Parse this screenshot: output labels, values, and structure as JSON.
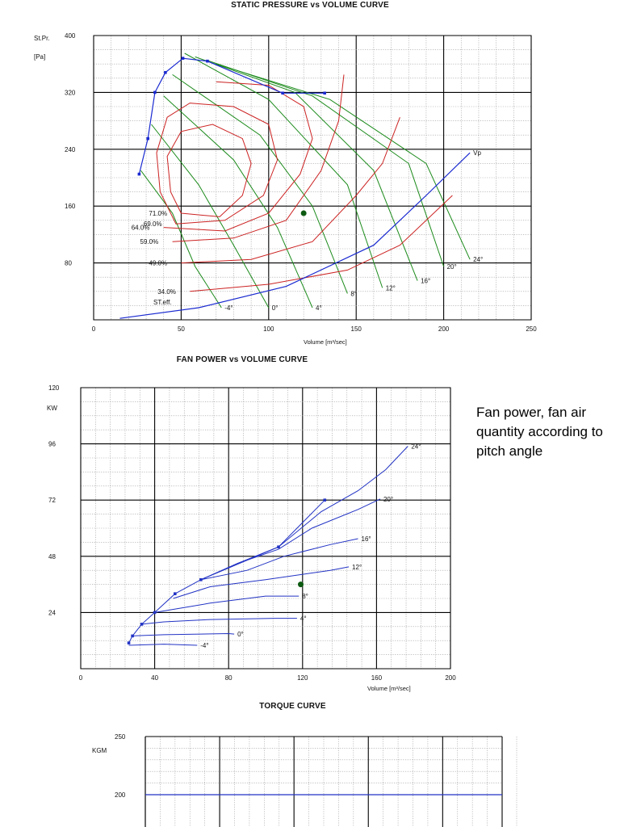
{
  "caption": "Fan power, fan air quantity according to pitch angle",
  "chart_data": [
    {
      "type": "line",
      "title": "STATIC PRESSURE vs VOLUME CURVE",
      "xlabel": "Volume [m³/sec]",
      "ylabel": "St.Pr. [Pa]",
      "xlim": [
        0,
        250
      ],
      "ylim": [
        0,
        400
      ],
      "x_ticks": [
        "0",
        "50",
        "100",
        "150",
        "200",
        "250"
      ],
      "y_ticks": [
        "80",
        "160",
        "240",
        "320",
        "400"
      ],
      "colors": {
        "pitch": "#1a8a1a",
        "efficiency": "#cc2222",
        "envelope": "#1a2ad0",
        "vp": "#1a2ad0",
        "operating_point": "#0d5a12"
      },
      "pitch_lines": [
        {
          "label": "-4°",
          "points": [
            [
              27,
              210
            ],
            [
              45,
              150
            ],
            [
              58,
              75
            ],
            [
              73,
              17
            ]
          ]
        },
        {
          "label": "0°",
          "points": [
            [
              33,
              275
            ],
            [
              60,
              190
            ],
            [
              80,
              105
            ],
            [
              100,
              17
            ]
          ]
        },
        {
          "label": "4°",
          "points": [
            [
              40,
              315
            ],
            [
              80,
              225
            ],
            [
              105,
              130
            ],
            [
              125,
              17
            ]
          ]
        },
        {
          "label": "8°",
          "points": [
            [
              45,
              345
            ],
            [
              95,
              260
            ],
            [
              125,
              160
            ],
            [
              145,
              37
            ]
          ]
        },
        {
          "label": "12°",
          "points": [
            [
              52,
              375
            ],
            [
              100,
              310
            ],
            [
              145,
              190
            ],
            [
              165,
              45
            ]
          ]
        },
        {
          "label": "16°",
          "points": [
            [
              58,
              370
            ],
            [
              115,
              320
            ],
            [
              160,
              210
            ],
            [
              185,
              55
            ]
          ]
        },
        {
          "label": "20°",
          "points": [
            [
              65,
              365
            ],
            [
              125,
              315
            ],
            [
              180,
              220
            ],
            [
              200,
              75
            ]
          ]
        },
        {
          "label": "24°",
          "points": [
            [
              70,
              360
            ],
            [
              135,
              310
            ],
            [
              190,
              220
            ],
            [
              215,
              85
            ]
          ]
        }
      ],
      "efficiency_lines": [
        {
          "label": "71.0%",
          "type": "closed",
          "points": [
            [
              50,
              150
            ],
            [
              72,
              145
            ],
            [
              85,
              175
            ],
            [
              90,
              220
            ],
            [
              85,
              255
            ],
            [
              68,
              275
            ],
            [
              50,
              265
            ],
            [
              42,
              230
            ],
            [
              44,
              180
            ]
          ]
        },
        {
          "label": "69.0%",
          "type": "closed",
          "points": [
            [
              47,
              135
            ],
            [
              75,
              140
            ],
            [
              97,
              175
            ],
            [
              105,
              225
            ],
            [
              100,
              275
            ],
            [
              80,
              300
            ],
            [
              55,
              305
            ],
            [
              42,
              285
            ],
            [
              36,
              235
            ],
            [
              38,
              180
            ]
          ]
        },
        {
          "label": "64.0%",
          "type": "open",
          "points": [
            [
              40,
              130
            ],
            [
              75,
              125
            ],
            [
              100,
              150
            ],
            [
              118,
              205
            ],
            [
              125,
              255
            ],
            [
              120,
              300
            ],
            [
              100,
              330
            ],
            [
              70,
              335
            ]
          ]
        },
        {
          "label": "59.0%",
          "type": "open",
          "points": [
            [
              45,
              110
            ],
            [
              80,
              115
            ],
            [
              110,
              140
            ],
            [
              130,
              210
            ],
            [
              140,
              280
            ],
            [
              143,
              345
            ]
          ]
        },
        {
          "label": "49.0%",
          "type": "open",
          "points": [
            [
              50,
              80
            ],
            [
              90,
              85
            ],
            [
              125,
              110
            ],
            [
              150,
              175
            ],
            [
              165,
              220
            ],
            [
              175,
              285
            ]
          ]
        },
        {
          "label": "34.0%",
          "type": "open",
          "points": [
            [
              55,
              40
            ],
            [
              100,
              50
            ],
            [
              145,
              70
            ],
            [
              175,
              105
            ],
            [
              205,
              175
            ]
          ]
        }
      ],
      "envelope": {
        "points": [
          [
            26,
            205
          ],
          [
            31,
            255
          ],
          [
            35,
            320
          ],
          [
            41,
            348
          ],
          [
            51,
            368
          ],
          [
            65,
            364
          ],
          [
            108,
            319
          ],
          [
            132,
            319
          ]
        ]
      },
      "vp_curve": {
        "label": "Vp",
        "points": [
          [
            15,
            2
          ],
          [
            60,
            17
          ],
          [
            110,
            47
          ],
          [
            160,
            105
          ],
          [
            190,
            175
          ],
          [
            215,
            235
          ]
        ]
      },
      "operating_point": {
        "x": 120,
        "y": 150
      },
      "st_eff_label": "ST.eff."
    },
    {
      "type": "line",
      "title": "FAN POWER vs VOLUME CURVE",
      "xlabel": "Volume [m³/sec]",
      "ylabel": "KW",
      "xlim": [
        0,
        200
      ],
      "ylim": [
        0,
        120
      ],
      "x_ticks": [
        "0",
        "40",
        "80",
        "120",
        "160",
        "200"
      ],
      "y_ticks": [
        "24",
        "48",
        "72",
        "96",
        "120"
      ],
      "colors": {
        "series": "#2233c4",
        "operating_point": "#0d5a12"
      },
      "series": [
        {
          "name": "-4°",
          "points": [
            [
              26,
              10
            ],
            [
              45,
              10.5
            ],
            [
              63,
              10
            ]
          ]
        },
        {
          "name": "0°",
          "points": [
            [
              28,
              14
            ],
            [
              45,
              14.5
            ],
            [
              65,
              14.8
            ],
            [
              80,
              15
            ],
            [
              83,
              14.8
            ]
          ]
        },
        {
          "name": "4°",
          "points": [
            [
              33,
              19
            ],
            [
              45,
              20
            ],
            [
              70,
              21
            ],
            [
              105,
              21.5
            ],
            [
              117,
              21.5
            ]
          ]
        },
        {
          "name": "8°",
          "points": [
            [
              40,
              24
            ],
            [
              55,
              26
            ],
            [
              70,
              28
            ],
            [
              100,
              31
            ],
            [
              118,
              31
            ]
          ]
        },
        {
          "name": "12°",
          "points": [
            [
              50,
              30
            ],
            [
              70,
              35
            ],
            [
              100,
              38
            ],
            [
              135,
              42
            ],
            [
              145,
              43.5
            ]
          ]
        },
        {
          "name": "16°",
          "points": [
            [
              65,
              38
            ],
            [
              90,
              42
            ],
            [
              110,
              48
            ],
            [
              135,
              53
            ],
            [
              150,
              55.5
            ]
          ]
        },
        {
          "name": "20°",
          "points": [
            [
              65,
              38
            ],
            [
              85,
              45
            ],
            [
              107,
              51
            ],
            [
              125,
              60
            ],
            [
              150,
              68
            ],
            [
              162,
              72.5
            ]
          ]
        },
        {
          "name": "24°",
          "points": [
            [
              65,
              38
            ],
            [
              85,
              45
            ],
            [
              107,
              52
            ],
            [
              130,
              67
            ],
            [
              150,
              76
            ],
            [
              165,
              85
            ],
            [
              177,
              95
            ]
          ]
        }
      ],
      "envelope": {
        "points": [
          [
            26,
            11
          ],
          [
            28,
            14
          ],
          [
            33,
            19
          ],
          [
            40,
            24
          ],
          [
            51,
            32
          ],
          [
            65,
            38
          ],
          [
            107,
            52
          ],
          [
            132,
            72
          ]
        ]
      },
      "operating_point": {
        "x": 119,
        "y": 36
      }
    },
    {
      "type": "line",
      "title": "TORQUE CURVE",
      "ylabel": "KGM",
      "y_ticks": [
        "200",
        "250"
      ],
      "colors": {
        "series": "#2233c4"
      },
      "series": [
        {
          "points": [
            [
              0,
              200
            ],
            [
              1,
              200
            ]
          ]
        }
      ]
    }
  ]
}
